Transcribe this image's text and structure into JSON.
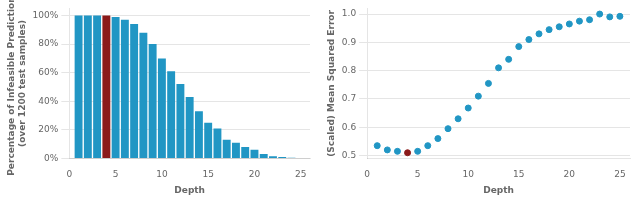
{
  "chart_data": [
    {
      "type": "bar",
      "x": [
        1,
        2,
        3,
        4,
        5,
        6,
        7,
        8,
        9,
        10,
        11,
        12,
        13,
        14,
        15,
        16,
        17,
        18,
        19,
        20,
        21,
        22,
        23,
        24,
        25
      ],
      "values": [
        1.0,
        1.0,
        1.0,
        1.0,
        0.99,
        0.97,
        0.94,
        0.88,
        0.8,
        0.7,
        0.61,
        0.52,
        0.43,
        0.33,
        0.25,
        0.21,
        0.13,
        0.11,
        0.08,
        0.06,
        0.03,
        0.015,
        0.01,
        0.005,
        0.002
      ],
      "colors": [
        "#2196C4",
        "#2196C4",
        "#2196C4",
        "#8B1A1A",
        "#2196C4",
        "#2196C4",
        "#2196C4",
        "#2196C4",
        "#2196C4",
        "#2196C4",
        "#2196C4",
        "#2196C4",
        "#2196C4",
        "#2196C4",
        "#2196C4",
        "#2196C4",
        "#2196C4",
        "#2196C4",
        "#2196C4",
        "#2196C4",
        "#2196C4",
        "#2196C4",
        "#2196C4",
        "#2196C4",
        "#2196C4"
      ],
      "xlabel": "Depth",
      "ylabel": "Percentage of Infeasible Predictions\n(over 1200 test samples)",
      "xlim": [
        0,
        26
      ],
      "xticks": [
        0,
        5,
        10,
        15,
        20,
        25
      ],
      "ylim": [
        0,
        1.05
      ],
      "yticks": [
        {
          "value": 0,
          "label": "0%"
        },
        {
          "value": 0.2,
          "label": "20%"
        },
        {
          "value": 0.4,
          "label": "40%"
        },
        {
          "value": 0.6,
          "label": "60%"
        },
        {
          "value": 0.8,
          "label": "80%"
        },
        {
          "value": 1.0,
          "label": "100%"
        }
      ],
      "grid": "y"
    },
    {
      "type": "scatter",
      "x": [
        1,
        2,
        3,
        4,
        5,
        6,
        7,
        8,
        9,
        10,
        11,
        12,
        13,
        14,
        15,
        16,
        17,
        18,
        19,
        20,
        21,
        22,
        23,
        24,
        25
      ],
      "values": [
        0.535,
        0.52,
        0.515,
        0.51,
        0.515,
        0.535,
        0.56,
        0.595,
        0.63,
        0.668,
        0.71,
        0.755,
        0.81,
        0.84,
        0.885,
        0.91,
        0.93,
        0.945,
        0.955,
        0.965,
        0.975,
        0.98,
        1.0,
        0.99,
        0.992
      ],
      "colors": [
        "#2196C4",
        "#2196C4",
        "#2196C4",
        "#8B1A1A",
        "#2196C4",
        "#2196C4",
        "#2196C4",
        "#2196C4",
        "#2196C4",
        "#2196C4",
        "#2196C4",
        "#2196C4",
        "#2196C4",
        "#2196C4",
        "#2196C4",
        "#2196C4",
        "#2196C4",
        "#2196C4",
        "#2196C4",
        "#2196C4",
        "#2196C4",
        "#2196C4",
        "#2196C4",
        "#2196C4",
        "#2196C4"
      ],
      "xlabel": "Depth",
      "ylabel": "(Scaled) Mean Squared Error",
      "xlim": [
        0,
        26
      ],
      "xticks": [
        0,
        5,
        10,
        15,
        20,
        25
      ],
      "ylim": [
        0.49,
        1.02
      ],
      "yticks": [
        0.5,
        0.6,
        0.7,
        0.8,
        0.9,
        {
          "value": 1.0,
          "label": "1.0"
        }
      ],
      "grid": "y"
    }
  ]
}
